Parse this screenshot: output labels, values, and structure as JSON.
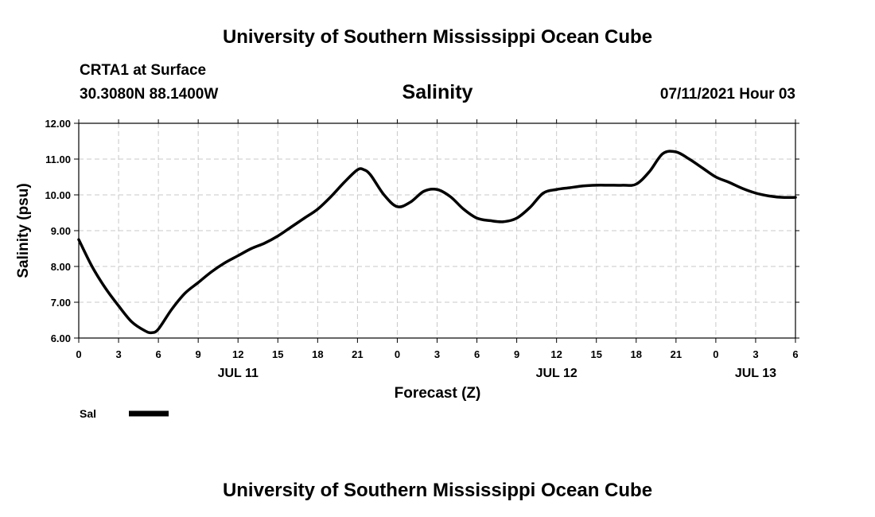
{
  "page": {
    "title_top": "University of Southern Mississippi Ocean Cube",
    "title_bottom": "University of Southern Mississippi Ocean Cube",
    "station": "CRTA1 at Surface",
    "coords": "30.3080N  88.1400W",
    "timestamp": "07/11/2021 Hour 03"
  },
  "chart_data": {
    "type": "line",
    "title": "Salinity",
    "xlabel": "Forecast (Z)",
    "ylabel": "Salinity (psu)",
    "ylim": [
      6.0,
      12.0
    ],
    "xlim": [
      0,
      54
    ],
    "x_units": "hours from JUL 11 00Z",
    "y_ticks": [
      "6.00",
      "7.00",
      "8.00",
      "9.00",
      "10.00",
      "11.00",
      "12.00"
    ],
    "y_tick_values": [
      6,
      7,
      8,
      9,
      10,
      11,
      12
    ],
    "x_ticks": [
      "0",
      "3",
      "6",
      "9",
      "12",
      "15",
      "18",
      "21",
      "0",
      "3",
      "6",
      "9",
      "12",
      "15",
      "18",
      "21",
      "0",
      "3",
      "6"
    ],
    "x_tick_values": [
      0,
      3,
      6,
      9,
      12,
      15,
      18,
      21,
      24,
      27,
      30,
      33,
      36,
      39,
      42,
      45,
      48,
      51,
      54
    ],
    "date_labels": [
      {
        "label": "JUL 11",
        "x": 12
      },
      {
        "label": "JUL 12",
        "x": 36
      },
      {
        "label": "JUL 13",
        "x": 51
      }
    ],
    "grid": true,
    "legend": {
      "position": "bottom-left",
      "entries": [
        {
          "label": "Sal"
        }
      ]
    },
    "series": [
      {
        "name": "Sal",
        "color": "#000000",
        "x": [
          0,
          1,
          2,
          3,
          4,
          5,
          5.5,
          6,
          7,
          8,
          9,
          10,
          11,
          12,
          13,
          14,
          15,
          16,
          17,
          18,
          19,
          20,
          21,
          21.5,
          22,
          23,
          24,
          25,
          26,
          27,
          28,
          29,
          30,
          31,
          32,
          33,
          34,
          35,
          36,
          37,
          38,
          39,
          40,
          41,
          42,
          43,
          44,
          45,
          46,
          47,
          48,
          49,
          50,
          51,
          52,
          53,
          54
        ],
        "values": [
          8.75,
          8.0,
          7.4,
          6.9,
          6.45,
          6.2,
          6.15,
          6.25,
          6.8,
          7.25,
          7.55,
          7.85,
          8.1,
          8.3,
          8.5,
          8.65,
          8.85,
          9.1,
          9.35,
          9.6,
          9.95,
          10.35,
          10.7,
          10.7,
          10.55,
          10.0,
          9.67,
          9.8,
          10.1,
          10.15,
          9.95,
          9.6,
          9.35,
          9.28,
          9.25,
          9.35,
          9.65,
          10.05,
          10.15,
          10.2,
          10.25,
          10.27,
          10.27,
          10.27,
          10.3,
          10.65,
          11.15,
          11.2,
          11.0,
          10.75,
          10.5,
          10.35,
          10.18,
          10.05,
          9.97,
          9.93,
          9.93
        ]
      }
    ]
  }
}
